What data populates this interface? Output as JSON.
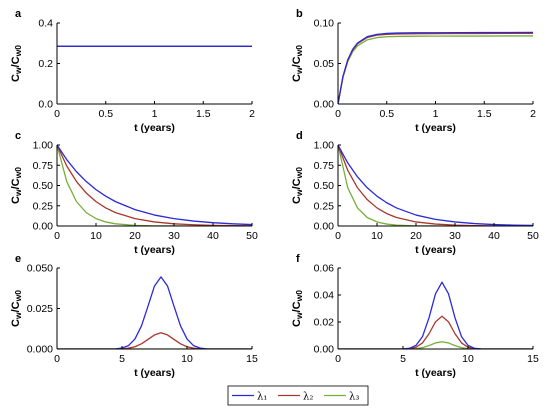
{
  "colors": {
    "lambda1": "#2b2bd6",
    "lambda2": "#a8382c",
    "lambda3": "#78ae3a"
  },
  "legend": [
    {
      "name": "λ₁",
      "color": "#2b2bd6"
    },
    {
      "name": "λ₂",
      "color": "#a8382c"
    },
    {
      "name": "λ₃",
      "color": "#78ae3a"
    }
  ],
  "chart_data": [
    {
      "label": "a",
      "type": "line",
      "xlabel": "t (years)",
      "ylabel": "Cw/Cw0",
      "xlim": [
        0,
        2
      ],
      "ylim": [
        0,
        0.4
      ],
      "xticks": [
        "0",
        "0.5",
        "1",
        "1.5",
        "2"
      ],
      "xtick_values": [
        0,
        0.5,
        1,
        1.5,
        2
      ],
      "yticks": [
        "0.0",
        "0.2",
        "0.4"
      ],
      "ytick_values": [
        0,
        0.2,
        0.4
      ],
      "series": [
        {
          "x": [
            0,
            0.5,
            1,
            1.5,
            2
          ],
          "y": [
            0.285,
            0.285,
            0.285,
            0.285,
            0.285
          ]
        },
        {
          "x": [
            0,
            0.5,
            1,
            1.5,
            2
          ],
          "y": [
            0.285,
            0.285,
            0.285,
            0.285,
            0.285
          ]
        },
        {
          "x": [
            0,
            0.5,
            1,
            1.5,
            2
          ],
          "y": [
            0.285,
            0.285,
            0.285,
            0.285,
            0.285
          ]
        }
      ]
    },
    {
      "label": "b",
      "type": "line",
      "xlabel": "t (years)",
      "ylabel": "Cw/Cw0",
      "xlim": [
        0,
        2
      ],
      "ylim": [
        0,
        0.1
      ],
      "xticks": [
        "0",
        "0.5",
        "1",
        "1.5",
        "2"
      ],
      "xtick_values": [
        0,
        0.5,
        1,
        1.5,
        2
      ],
      "yticks": [
        "0.00",
        "0.05",
        "0.10"
      ],
      "ytick_values": [
        0,
        0.05,
        0.1
      ],
      "series": [
        {
          "x": [
            0,
            0.05,
            0.1,
            0.15,
            0.2,
            0.3,
            0.4,
            0.5,
            0.6,
            0.8,
            1,
            1.25,
            1.5,
            1.75,
            2
          ],
          "y": [
            0,
            0.0338,
            0.0546,
            0.0674,
            0.0753,
            0.0831,
            0.086,
            0.0871,
            0.0876,
            0.0879,
            0.088,
            0.0881,
            0.0882,
            0.0883,
            0.0884
          ]
        },
        {
          "x": [
            0,
            0.05,
            0.1,
            0.15,
            0.2,
            0.3,
            0.4,
            0.5,
            0.6,
            0.8,
            1,
            1.25,
            1.5,
            1.75,
            2
          ],
          "y": [
            0,
            0.0334,
            0.054,
            0.0666,
            0.0744,
            0.0821,
            0.085,
            0.086,
            0.0865,
            0.0867,
            0.0869,
            0.087,
            0.0871,
            0.0872,
            0.0873
          ]
        },
        {
          "x": [
            0,
            0.05,
            0.1,
            0.15,
            0.2,
            0.3,
            0.4,
            0.5,
            0.6,
            0.8,
            1,
            1.25,
            1.5,
            1.75,
            2
          ],
          "y": [
            0,
            0.0323,
            0.0522,
            0.0644,
            0.0718,
            0.0792,
            0.082,
            0.083,
            0.0834,
            0.0837,
            0.0838,
            0.0839,
            0.0839,
            0.084,
            0.084
          ]
        }
      ]
    },
    {
      "label": "c",
      "type": "line",
      "xlabel": "t (years)",
      "ylabel": "Cw/Cw0",
      "xlim": [
        0,
        50
      ],
      "ylim": [
        0,
        1
      ],
      "xticks": [
        "0",
        "10",
        "20",
        "30",
        "40",
        "50"
      ],
      "xtick_values": [
        0,
        10,
        20,
        30,
        40,
        50
      ],
      "yticks": [
        "0.00",
        "0.25",
        "0.50",
        "0.75",
        "1.00"
      ],
      "ytick_values": [
        0,
        0.25,
        0.5,
        0.75,
        1
      ],
      "series": [
        {
          "x": [
            0,
            2.5,
            5,
            7.5,
            10,
            12.5,
            15,
            20,
            25,
            30,
            35,
            40,
            45,
            50
          ],
          "y": [
            1,
            0.819,
            0.67,
            0.549,
            0.449,
            0.368,
            0.301,
            0.202,
            0.135,
            0.091,
            0.061,
            0.041,
            0.027,
            0.018
          ]
        },
        {
          "x": [
            0,
            2.5,
            5,
            7.5,
            10,
            12.5,
            15,
            20,
            25,
            30,
            35,
            40,
            45,
            50
          ],
          "y": [
            1,
            0.741,
            0.549,
            0.407,
            0.301,
            0.223,
            0.165,
            0.091,
            0.05,
            0.027,
            0.015,
            0.008,
            0.005,
            0.003
          ]
        },
        {
          "x": [
            0,
            2.5,
            5,
            7.5,
            10,
            12.5,
            15,
            20,
            25,
            30,
            35,
            40,
            45,
            50
          ],
          "y": [
            1,
            0.549,
            0.301,
            0.165,
            0.091,
            0.05,
            0.027,
            0.008,
            0.002,
            0.001,
            0,
            0,
            0,
            0
          ]
        }
      ]
    },
    {
      "label": "d",
      "type": "line",
      "xlabel": "t (years)",
      "ylabel": "Cw/Cw0",
      "xlim": [
        0,
        50
      ],
      "ylim": [
        0,
        1
      ],
      "xticks": [
        "0",
        "10",
        "20",
        "30",
        "40",
        "50"
      ],
      "xtick_values": [
        0,
        10,
        20,
        30,
        40,
        50
      ],
      "yticks": [
        "0.00",
        "0.25",
        "0.50",
        "0.75",
        "1.00"
      ],
      "ytick_values": [
        0,
        0.25,
        0.5,
        0.75,
        1
      ],
      "series": [
        {
          "x": [
            0,
            2.5,
            5,
            7.5,
            10,
            12.5,
            15,
            20,
            25,
            30,
            35,
            40,
            45,
            50
          ],
          "y": [
            1,
            0.779,
            0.607,
            0.472,
            0.368,
            0.287,
            0.223,
            0.135,
            0.082,
            0.05,
            0.03,
            0.018,
            0.011,
            0.007
          ]
        },
        {
          "x": [
            0,
            2.5,
            5,
            7.5,
            10,
            12.5,
            15,
            20,
            25,
            30,
            35,
            40,
            45,
            50
          ],
          "y": [
            1,
            0.687,
            0.472,
            0.325,
            0.223,
            0.153,
            0.105,
            0.05,
            0.024,
            0.011,
            0.005,
            0.002,
            0.001,
            0.001
          ]
        },
        {
          "x": [
            0,
            2.5,
            5,
            7.5,
            10,
            12.5,
            15,
            20,
            25,
            30,
            35,
            40,
            45,
            50
          ],
          "y": [
            1,
            0.472,
            0.223,
            0.105,
            0.05,
            0.024,
            0.011,
            0.002,
            0.001,
            0,
            0,
            0,
            0,
            0
          ]
        }
      ]
    },
    {
      "label": "e",
      "type": "line",
      "xlabel": "t (years)",
      "ylabel": "Cw/Cw0",
      "xlim": [
        0,
        15
      ],
      "ylim": [
        0,
        0.05
      ],
      "xticks": [
        "0",
        "5",
        "10",
        "15"
      ],
      "xtick_values": [
        0,
        5,
        10,
        15
      ],
      "yticks": [
        "0.000",
        "0.025",
        "0.050"
      ],
      "ytick_values": [
        0,
        0.025,
        0.05
      ],
      "series": [
        {
          "x": [
            0,
            4,
            4.5,
            5,
            5.5,
            6,
            6.5,
            7,
            7.5,
            8,
            8.5,
            9,
            9.5,
            10,
            10.5,
            11,
            11.5,
            12,
            13,
            15
          ],
          "y": [
            0,
            0,
            0.0001,
            0.0006,
            0.0021,
            0.0062,
            0.0143,
            0.0264,
            0.0389,
            0.0445,
            0.0389,
            0.0264,
            0.0143,
            0.0062,
            0.0021,
            0.0006,
            0.0001,
            0,
            0,
            0
          ]
        },
        {
          "x": [
            0,
            4,
            4.5,
            5,
            5.5,
            6,
            6.5,
            7,
            7.5,
            8,
            8.5,
            9,
            9.5,
            10,
            10.5,
            11,
            11.5,
            12,
            13,
            15
          ],
          "y": [
            0,
            0,
            0,
            0.0001,
            0.0005,
            0.0014,
            0.0032,
            0.0059,
            0.0087,
            0.01,
            0.0087,
            0.0059,
            0.0032,
            0.0014,
            0.0005,
            0.0001,
            0,
            0,
            0,
            0
          ]
        },
        {
          "x": [
            0,
            4,
            5,
            6,
            7,
            8,
            9,
            10,
            11,
            12,
            13,
            15
          ],
          "y": [
            0,
            0,
            0,
            0,
            0,
            0,
            0,
            0,
            0,
            0,
            0,
            0
          ]
        }
      ]
    },
    {
      "label": "f",
      "type": "line",
      "xlabel": "t (years)",
      "ylabel": "Cw/Cw0",
      "xlim": [
        0,
        15
      ],
      "ylim": [
        0,
        0.06
      ],
      "xticks": [
        "0",
        "5",
        "10",
        "15"
      ],
      "xtick_values": [
        0,
        5,
        10,
        15
      ],
      "yticks": [
        "0.00",
        "0.02",
        "0.04",
        "0.06"
      ],
      "ytick_values": [
        0,
        0.02,
        0.04,
        0.06
      ],
      "series": [
        {
          "x": [
            0,
            4,
            4.5,
            5,
            5.5,
            6,
            6.5,
            7,
            7.5,
            8,
            8.5,
            9,
            9.5,
            10,
            10.5,
            11,
            11.5,
            12,
            13,
            15
          ],
          "y": [
            0,
            0,
            0,
            0.0001,
            0.0005,
            0.0027,
            0.0092,
            0.0231,
            0.0409,
            0.0495,
            0.0409,
            0.0231,
            0.0092,
            0.0027,
            0.0005,
            0.0001,
            0,
            0,
            0,
            0
          ]
        },
        {
          "x": [
            0,
            4,
            4.5,
            5,
            5.5,
            6,
            6.5,
            7,
            7.5,
            8,
            8.5,
            9,
            9.5,
            10,
            10.5,
            11,
            11.5,
            12,
            13,
            15
          ],
          "y": [
            0,
            0,
            0,
            0,
            0.0003,
            0.0013,
            0.0045,
            0.0113,
            0.0201,
            0.0243,
            0.0201,
            0.0113,
            0.0045,
            0.0013,
            0.0003,
            0,
            0,
            0,
            0,
            0
          ]
        },
        {
          "x": [
            0,
            4,
            4.5,
            5,
            5.5,
            6,
            6.5,
            7,
            7.5,
            8,
            8.5,
            9,
            9.5,
            10,
            10.5,
            11,
            11.5,
            12,
            13,
            15
          ],
          "y": [
            0,
            0,
            0,
            0,
            0.0001,
            0.0003,
            0.001,
            0.0025,
            0.0045,
            0.0054,
            0.0045,
            0.0025,
            0.001,
            0.0003,
            0.0001,
            0,
            0,
            0,
            0,
            0
          ]
        }
      ]
    }
  ]
}
